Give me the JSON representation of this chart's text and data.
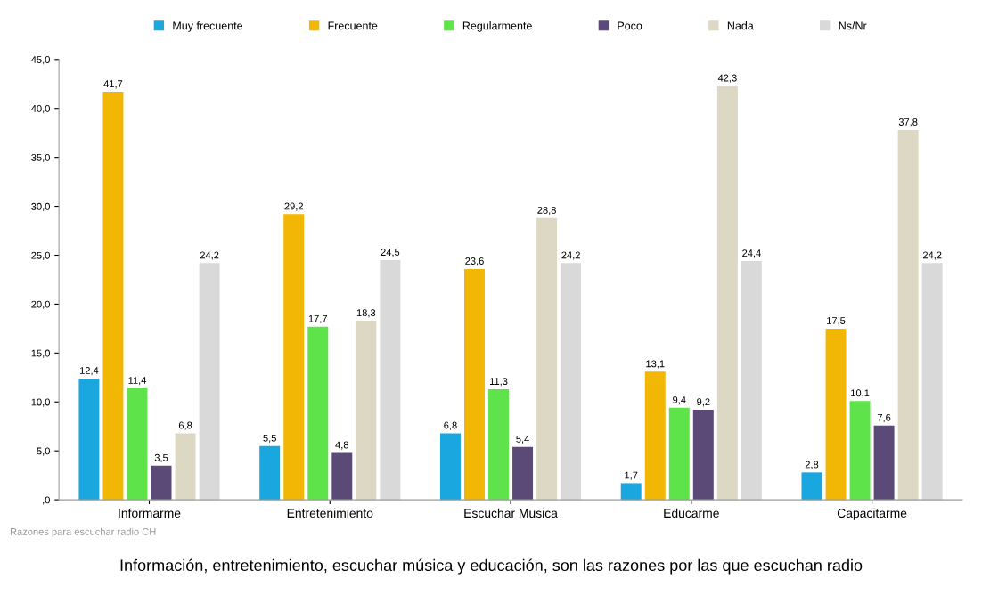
{
  "chart_data": {
    "type": "bar",
    "title": "Información, entretenimiento, escuchar música y educación, son las razones por las que escuchan radio",
    "categories": [
      "Informarme",
      "Entretenimiento",
      "Escuchar Musica",
      "Educarme",
      "Capacitarme"
    ],
    "series": [
      {
        "name": "Muy frecuente",
        "color": "#1aa7e0",
        "values": [
          12.4,
          5.5,
          6.8,
          1.7,
          2.8
        ],
        "value_labels": [
          "12,4",
          "5,5",
          "6,8",
          "1,7",
          "2,8"
        ]
      },
      {
        "name": "Frecuente",
        "color": "#f2b705",
        "values": [
          41.7,
          29.2,
          23.6,
          13.1,
          17.5
        ],
        "value_labels": [
          "41,7",
          "29,2",
          "23,6",
          "13,1",
          "17,5"
        ]
      },
      {
        "name": "Regularmente",
        "color": "#5fe34a",
        "values": [
          11.4,
          17.7,
          11.3,
          9.4,
          10.1
        ],
        "value_labels": [
          "11,4",
          "17,7",
          "11,3",
          "9,4",
          "10,1"
        ]
      },
      {
        "name": "Poco",
        "color": "#5b4a78",
        "values": [
          3.5,
          4.8,
          5.4,
          9.2,
          7.6
        ],
        "value_labels": [
          "3,5",
          "4,8",
          "5,4",
          "9,2",
          "7,6"
        ]
      },
      {
        "name": "Nada",
        "color": "#dcd8c4",
        "values": [
          6.8,
          18.3,
          28.8,
          42.3,
          37.8
        ],
        "value_labels": [
          "6,8",
          "18,3",
          "28,8",
          "42,3",
          "37,8"
        ]
      },
      {
        "name": "Ns/Nr",
        "color": "#d9d9d9",
        "values": [
          24.2,
          24.5,
          24.2,
          24.4,
          24.2
        ],
        "value_labels": [
          "24,2",
          "24,5",
          "24,2",
          "24,4",
          "24,2"
        ]
      }
    ],
    "ylim": [
      0,
      45
    ],
    "yticks": [
      {
        "value": 0,
        "label": ",0"
      },
      {
        "value": 5,
        "label": "5,0"
      },
      {
        "value": 10,
        "label": "10,0"
      },
      {
        "value": 15,
        "label": "15,0"
      },
      {
        "value": 20,
        "label": "20,0"
      },
      {
        "value": 25,
        "label": "25,0"
      },
      {
        "value": 30,
        "label": "30,0"
      },
      {
        "value": 35,
        "label": "35,0"
      },
      {
        "value": 40,
        "label": "40,0"
      },
      {
        "value": 45,
        "label": "45,0"
      }
    ],
    "legend": "top",
    "annotations": [
      "Razones para escuchar radio CH"
    ]
  }
}
